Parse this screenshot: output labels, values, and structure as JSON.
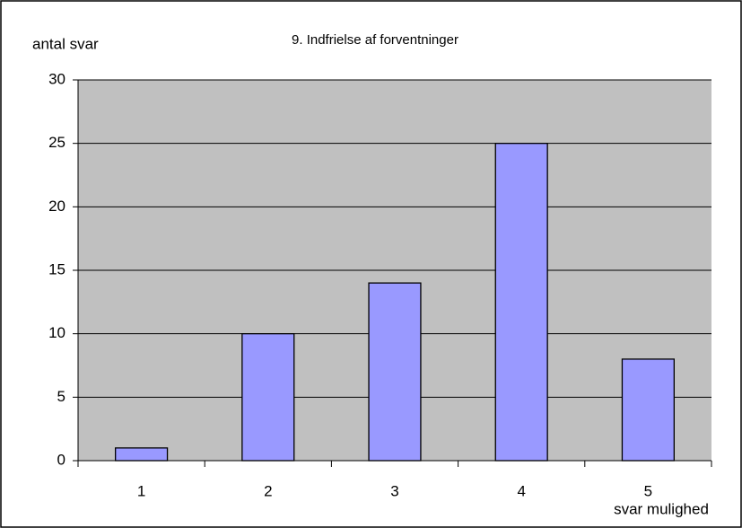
{
  "chart_data": {
    "type": "bar",
    "title": "9. Indfrielse af forventninger",
    "y_label": "antal svar",
    "x_label": "svar mulighed",
    "categories": [
      "1",
      "2",
      "3",
      "4",
      "5"
    ],
    "values": [
      1,
      10,
      14,
      25,
      8
    ],
    "color": "#9999ff",
    "ylim": [
      0,
      30
    ],
    "yticks": [
      0,
      5,
      10,
      15,
      20,
      25,
      30
    ],
    "grid": true
  }
}
